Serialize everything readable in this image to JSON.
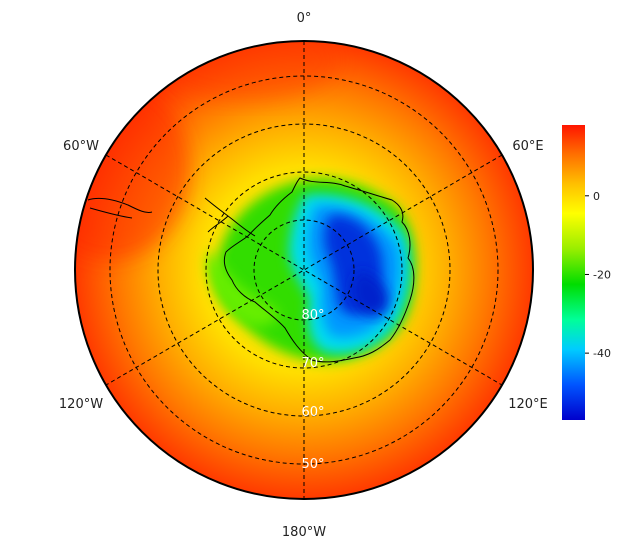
{
  "map": {
    "projection": "south-polar-stereographic",
    "variable_colormap": [
      "#0000cc",
      "#0066ff",
      "#00ccff",
      "#00ff99",
      "#00dd00",
      "#66ee00",
      "#ccff00",
      "#ffff00",
      "#ffcc00",
      "#ff9900",
      "#ff6600",
      "#ff2200"
    ],
    "longitude_labels": [
      {
        "text": "0°",
        "lon": 0
      },
      {
        "text": "60°E",
        "lon": 60
      },
      {
        "text": "120°E",
        "lon": 120
      },
      {
        "text": "180°W",
        "lon": 180
      },
      {
        "text": "120°W",
        "lon": -120
      },
      {
        "text": "60°W",
        "lon": -60
      }
    ],
    "latitude_labels": [
      {
        "text": "80°",
        "lat": -80
      },
      {
        "text": "70°",
        "lat": -70
      },
      {
        "text": "60°",
        "lat": -60
      },
      {
        "text": "50°",
        "lat": -50
      }
    ],
    "grid": true,
    "grid_style": "dashed"
  },
  "colorbar": {
    "min": -57,
    "max": 18,
    "ticks": [
      {
        "value": 0,
        "label": "0"
      },
      {
        "value": -20,
        "label": "-20"
      },
      {
        "value": -40,
        "label": "-40"
      }
    ],
    "colors": [
      "#0000cc",
      "#0044ff",
      "#0099ff",
      "#00eeff",
      "#00ff99",
      "#00ee44",
      "#00dd00",
      "#66ee00",
      "#ccff00",
      "#ffff00",
      "#ffd000",
      "#ffa000",
      "#ff7000",
      "#ff3300",
      "#ff1100"
    ]
  }
}
